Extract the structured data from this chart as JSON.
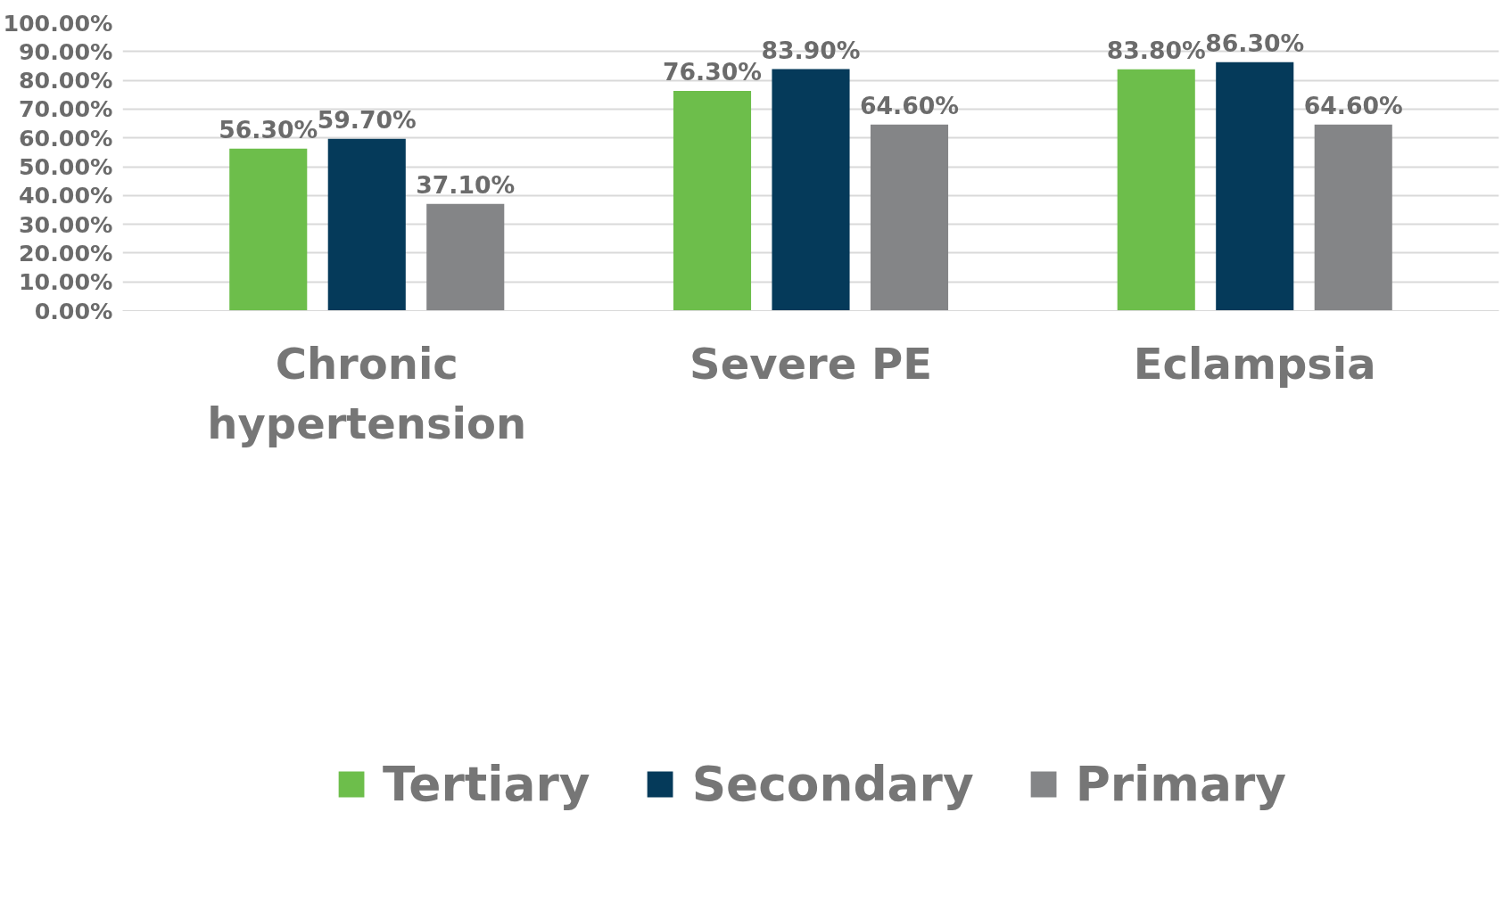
{
  "chart_data": {
    "type": "bar",
    "categories": [
      "Chronic hypertension",
      "Severe PE",
      "Eclampsia"
    ],
    "series": [
      {
        "name": "Tertiary",
        "color": "#6dbe4b",
        "values": [
          56.3,
          76.3,
          83.8
        ],
        "value_labels": [
          "56.30%",
          "76.30%",
          "83.80%"
        ]
      },
      {
        "name": "Secondary",
        "color": "#053a5a",
        "values": [
          59.7,
          83.9,
          86.3
        ],
        "value_labels": [
          "59.70%",
          "83.90%",
          "86.30%"
        ]
      },
      {
        "name": "Primary",
        "color": "#848587",
        "values": [
          37.1,
          64.6,
          64.6
        ],
        "value_labels": [
          "37.10%",
          "64.60%",
          "64.60%"
        ]
      }
    ],
    "ylim": [
      0,
      100
    ],
    "yticks": [
      {
        "value": 0,
        "label": "0.00%"
      },
      {
        "value": 10,
        "label": "10.00%"
      },
      {
        "value": 20,
        "label": "20.00%"
      },
      {
        "value": 30,
        "label": "30.00%"
      },
      {
        "value": 40,
        "label": "40.00%"
      },
      {
        "value": 50,
        "label": "50.00%"
      },
      {
        "value": 60,
        "label": "60.00%"
      },
      {
        "value": 70,
        "label": "70.00%"
      },
      {
        "value": 80,
        "label": "80.00%"
      },
      {
        "value": 90,
        "label": "90.00%"
      },
      {
        "value": 100,
        "label": "100.00%"
      }
    ],
    "grid": "y",
    "legend": "bottom"
  }
}
